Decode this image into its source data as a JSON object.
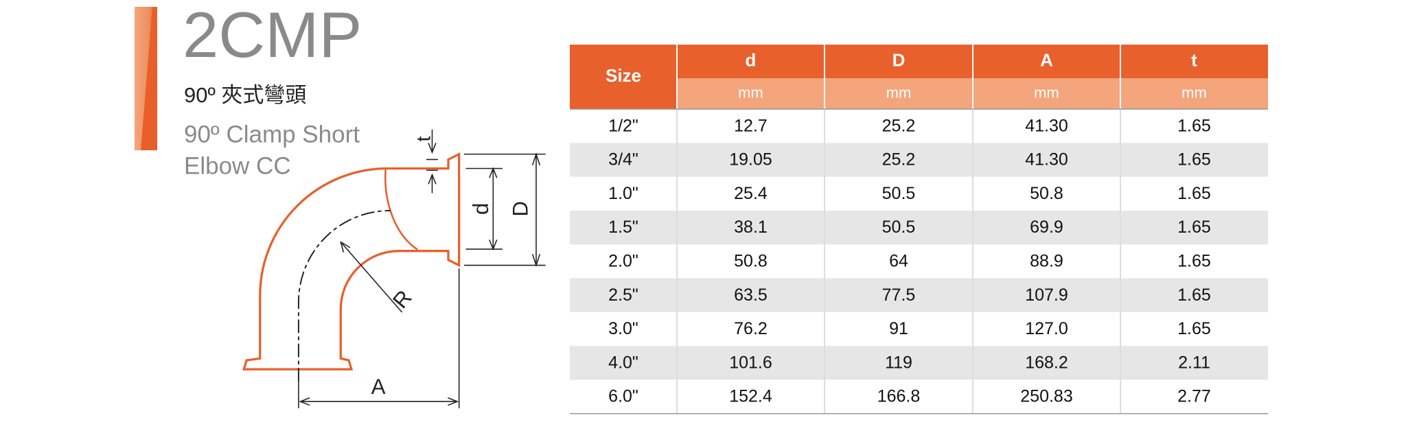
{
  "product": {
    "code": "2CMP",
    "name_zh": "90º 夾式彎頭",
    "name_en_lines": [
      "90º Clamp Short",
      "Elbow CC"
    ]
  },
  "diagram": {
    "labels": {
      "t": "t",
      "d": "d",
      "D": "D",
      "R": "R",
      "A": "A"
    }
  },
  "table": {
    "header": [
      "Size",
      "d",
      "D",
      "A",
      "t"
    ],
    "units": [
      "mm",
      "mm",
      "mm",
      "mm"
    ],
    "rows": [
      [
        "1/2\"",
        "12.7",
        "25.2",
        "41.30",
        "1.65"
      ],
      [
        "3/4\"",
        "19.05",
        "25.2",
        "41.30",
        "1.65"
      ],
      [
        "1.0\"",
        "25.4",
        "50.5",
        "50.8",
        "1.65"
      ],
      [
        "1.5\"",
        "38.1",
        "50.5",
        "69.9",
        "1.65"
      ],
      [
        "2.0\"",
        "50.8",
        "64",
        "88.9",
        "1.65"
      ],
      [
        "2.5\"",
        "63.5",
        "77.5",
        "107.9",
        "1.65"
      ],
      [
        "3.0\"",
        "76.2",
        "91",
        "127.0",
        "1.65"
      ],
      [
        "4.0\"",
        "101.6",
        "119",
        "168.2",
        "2.11"
      ],
      [
        "6.0\"",
        "152.4",
        "166.8",
        "250.83",
        "2.77"
      ]
    ]
  }
}
